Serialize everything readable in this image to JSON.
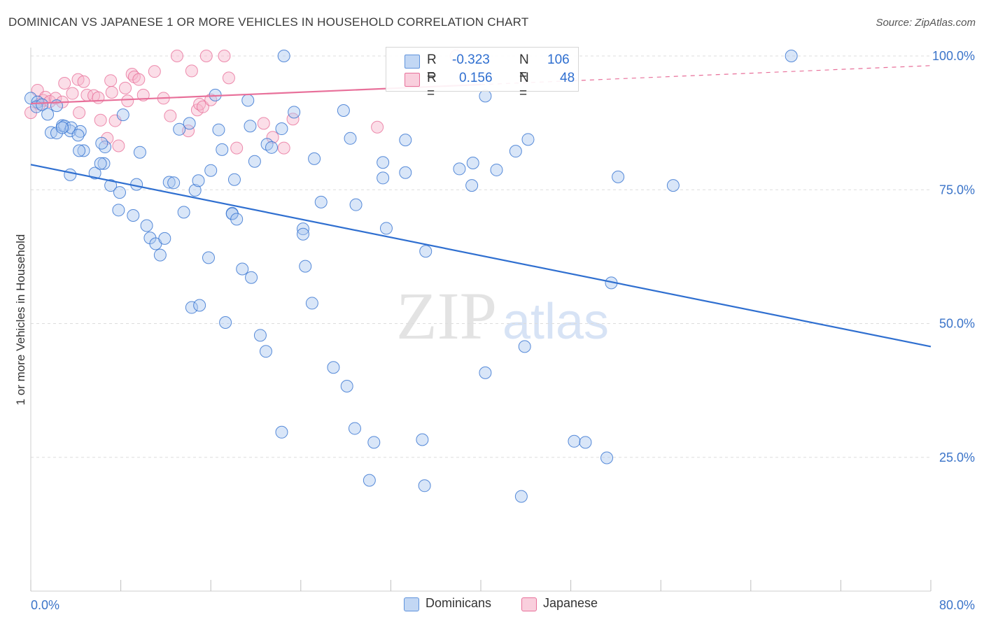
{
  "title": "DOMINICAN VS JAPANESE 1 OR MORE VEHICLES IN HOUSEHOLD CORRELATION CHART",
  "source": "Source: ZipAtlas.com",
  "watermark": {
    "zip": "ZIP",
    "atlas": "atlas"
  },
  "colors": {
    "blue": "#2f6fd0",
    "blue_fill": "#aac8f0",
    "pink": "#e8709a",
    "pink_fill": "#f6b6cc",
    "grid": "#dddddd",
    "tick_text": "#3b74c9"
  },
  "legend_top": {
    "rows": [
      {
        "r_label": "R =",
        "r_value": "-0.323",
        "n_label": "N =",
        "n_value": "106",
        "color": "blue"
      },
      {
        "r_label": "R =",
        "r_value": "0.156",
        "n_label": "N =",
        "n_value": "48",
        "color": "pink"
      }
    ]
  },
  "legend_bottom": {
    "dominicans": "Dominicans",
    "japanese": "Japanese"
  },
  "chart_data": {
    "type": "scatter",
    "title": "DOMINICAN VS JAPANESE 1 OR MORE VEHICLES IN HOUSEHOLD CORRELATION CHART",
    "xlabel": "",
    "ylabel": "1 or more Vehicles in Household",
    "xlim": [
      0,
      80
    ],
    "ylim": [
      0,
      100
    ],
    "x_tick_labels": {
      "min": "0.0%",
      "max": "80.0%"
    },
    "y_ticks": [
      {
        "value": 100,
        "label": "100.0%"
      },
      {
        "value": 75,
        "label": "75.0%"
      },
      {
        "value": 50,
        "label": "50.0%"
      },
      {
        "value": 25,
        "label": "25.0%"
      }
    ],
    "grid": true,
    "legend": "top-center",
    "series": [
      {
        "name": "Dominicans",
        "color": "blue",
        "r": -0.323,
        "n": 106,
        "trend": {
          "x0": 0,
          "y0": 79.7,
          "x1": 80,
          "y1": 45.7
        },
        "points": [
          [
            0.0,
            92.1
          ],
          [
            0.6,
            91.4
          ],
          [
            0.5,
            90.5
          ],
          [
            1.0,
            90.9
          ],
          [
            1.5,
            89.1
          ],
          [
            1.8,
            85.7
          ],
          [
            2.3,
            85.6
          ],
          [
            2.8,
            87.0
          ],
          [
            3.0,
            86.9
          ],
          [
            3.5,
            86.0
          ],
          [
            3.6,
            86.6
          ],
          [
            2.3,
            90.7
          ],
          [
            4.4,
            85.9
          ],
          [
            4.7,
            82.3
          ],
          [
            4.3,
            82.3
          ],
          [
            6.6,
            83.0
          ],
          [
            3.5,
            77.8
          ],
          [
            5.7,
            78.1
          ],
          [
            6.5,
            79.9
          ],
          [
            6.2,
            79.9
          ],
          [
            7.1,
            75.8
          ],
          [
            7.9,
            74.5
          ],
          [
            8.2,
            89.0
          ],
          [
            7.8,
            71.2
          ],
          [
            9.1,
            70.2
          ],
          [
            9.4,
            76.0
          ],
          [
            9.7,
            82.0
          ],
          [
            10.3,
            68.3
          ],
          [
            10.6,
            66.0
          ],
          [
            11.1,
            64.9
          ],
          [
            11.5,
            62.8
          ],
          [
            11.9,
            65.9
          ],
          [
            12.3,
            76.4
          ],
          [
            12.7,
            76.3
          ],
          [
            13.2,
            86.3
          ],
          [
            13.6,
            70.8
          ],
          [
            14.1,
            87.4
          ],
          [
            14.3,
            53.0
          ],
          [
            15.0,
            53.4
          ],
          [
            14.6,
            74.9
          ],
          [
            14.9,
            76.7
          ],
          [
            16.0,
            78.6
          ],
          [
            16.4,
            92.7
          ],
          [
            15.8,
            62.3
          ],
          [
            17.0,
            82.5
          ],
          [
            17.3,
            50.2
          ],
          [
            17.9,
            70.6
          ],
          [
            17.9,
            70.5
          ],
          [
            18.3,
            69.5
          ],
          [
            18.1,
            76.9
          ],
          [
            18.8,
            60.2
          ],
          [
            19.3,
            91.7
          ],
          [
            19.5,
            86.9
          ],
          [
            19.6,
            58.6
          ],
          [
            19.9,
            80.3
          ],
          [
            20.4,
            47.8
          ],
          [
            20.9,
            44.8
          ],
          [
            21.0,
            83.5
          ],
          [
            21.4,
            82.9
          ],
          [
            22.5,
            100.0
          ],
          [
            22.3,
            86.4
          ],
          [
            22.3,
            29.7
          ],
          [
            23.4,
            89.5
          ],
          [
            24.2,
            67.7
          ],
          [
            24.2,
            66.7
          ],
          [
            24.4,
            60.7
          ],
          [
            25.0,
            53.8
          ],
          [
            25.2,
            80.8
          ],
          [
            25.8,
            72.7
          ],
          [
            26.9,
            41.8
          ],
          [
            27.8,
            89.8
          ],
          [
            28.1,
            38.3
          ],
          [
            28.4,
            84.6
          ],
          [
            28.8,
            30.4
          ],
          [
            28.9,
            72.2
          ],
          [
            30.1,
            20.7
          ],
          [
            30.5,
            27.8
          ],
          [
            31.3,
            80.1
          ],
          [
            31.3,
            77.2
          ],
          [
            31.6,
            67.8
          ],
          [
            33.3,
            84.3
          ],
          [
            33.3,
            78.2
          ],
          [
            34.8,
            28.3
          ],
          [
            35.0,
            19.7
          ],
          [
            35.1,
            63.5
          ],
          [
            38.1,
            78.9
          ],
          [
            39.3,
            80.0
          ],
          [
            39.2,
            75.8
          ],
          [
            40.4,
            92.5
          ],
          [
            40.4,
            40.8
          ],
          [
            41.4,
            78.7
          ],
          [
            43.1,
            82.2
          ],
          [
            43.6,
            17.7
          ],
          [
            43.9,
            45.7
          ],
          [
            44.2,
            84.4
          ],
          [
            48.3,
            28.0
          ],
          [
            49.3,
            27.8
          ],
          [
            51.2,
            24.9
          ],
          [
            51.6,
            57.6
          ],
          [
            52.2,
            77.4
          ],
          [
            57.1,
            75.8
          ],
          [
            67.6,
            100.0
          ],
          [
            4.2,
            85.2
          ],
          [
            2.8,
            86.6
          ],
          [
            6.3,
            83.7
          ],
          [
            16.7,
            86.2
          ]
        ]
      },
      {
        "name": "Japanese",
        "color": "pink",
        "r": 0.156,
        "n": 48,
        "trend": {
          "x0": 0,
          "y0": 91.1,
          "x1": 80,
          "y1": 98.2,
          "solid_until_x": 40
        },
        "points": [
          [
            0.0,
            89.4
          ],
          [
            0.6,
            93.6
          ],
          [
            0.8,
            91.0
          ],
          [
            1.1,
            91.7
          ],
          [
            1.3,
            92.3
          ],
          [
            1.7,
            91.5
          ],
          [
            2.2,
            92.1
          ],
          [
            2.8,
            91.4
          ],
          [
            3.0,
            94.9
          ],
          [
            3.7,
            93.0
          ],
          [
            4.2,
            95.6
          ],
          [
            4.3,
            89.4
          ],
          [
            4.7,
            95.2
          ],
          [
            5.0,
            92.7
          ],
          [
            5.6,
            92.6
          ],
          [
            6.0,
            92.2
          ],
          [
            6.2,
            88.0
          ],
          [
            6.8,
            84.6
          ],
          [
            7.1,
            95.4
          ],
          [
            7.2,
            93.2
          ],
          [
            7.5,
            87.9
          ],
          [
            7.8,
            83.2
          ],
          [
            8.4,
            94.0
          ],
          [
            8.6,
            91.6
          ],
          [
            9.0,
            96.6
          ],
          [
            9.2,
            96.1
          ],
          [
            9.6,
            95.6
          ],
          [
            10.0,
            92.7
          ],
          [
            11.0,
            97.1
          ],
          [
            11.8,
            92.1
          ],
          [
            12.4,
            88.8
          ],
          [
            13.0,
            100.0
          ],
          [
            14.0,
            86.0
          ],
          [
            14.3,
            97.2
          ],
          [
            14.8,
            89.9
          ],
          [
            15.0,
            91.0
          ],
          [
            15.3,
            90.5
          ],
          [
            15.6,
            100.0
          ],
          [
            16.0,
            91.8
          ],
          [
            17.2,
            100.0
          ],
          [
            17.6,
            95.9
          ],
          [
            18.3,
            82.8
          ],
          [
            20.7,
            87.4
          ],
          [
            21.5,
            84.8
          ],
          [
            22.5,
            82.8
          ],
          [
            23.3,
            88.2
          ],
          [
            30.8,
            86.7
          ],
          [
            37.8,
            100.0
          ]
        ]
      }
    ]
  }
}
